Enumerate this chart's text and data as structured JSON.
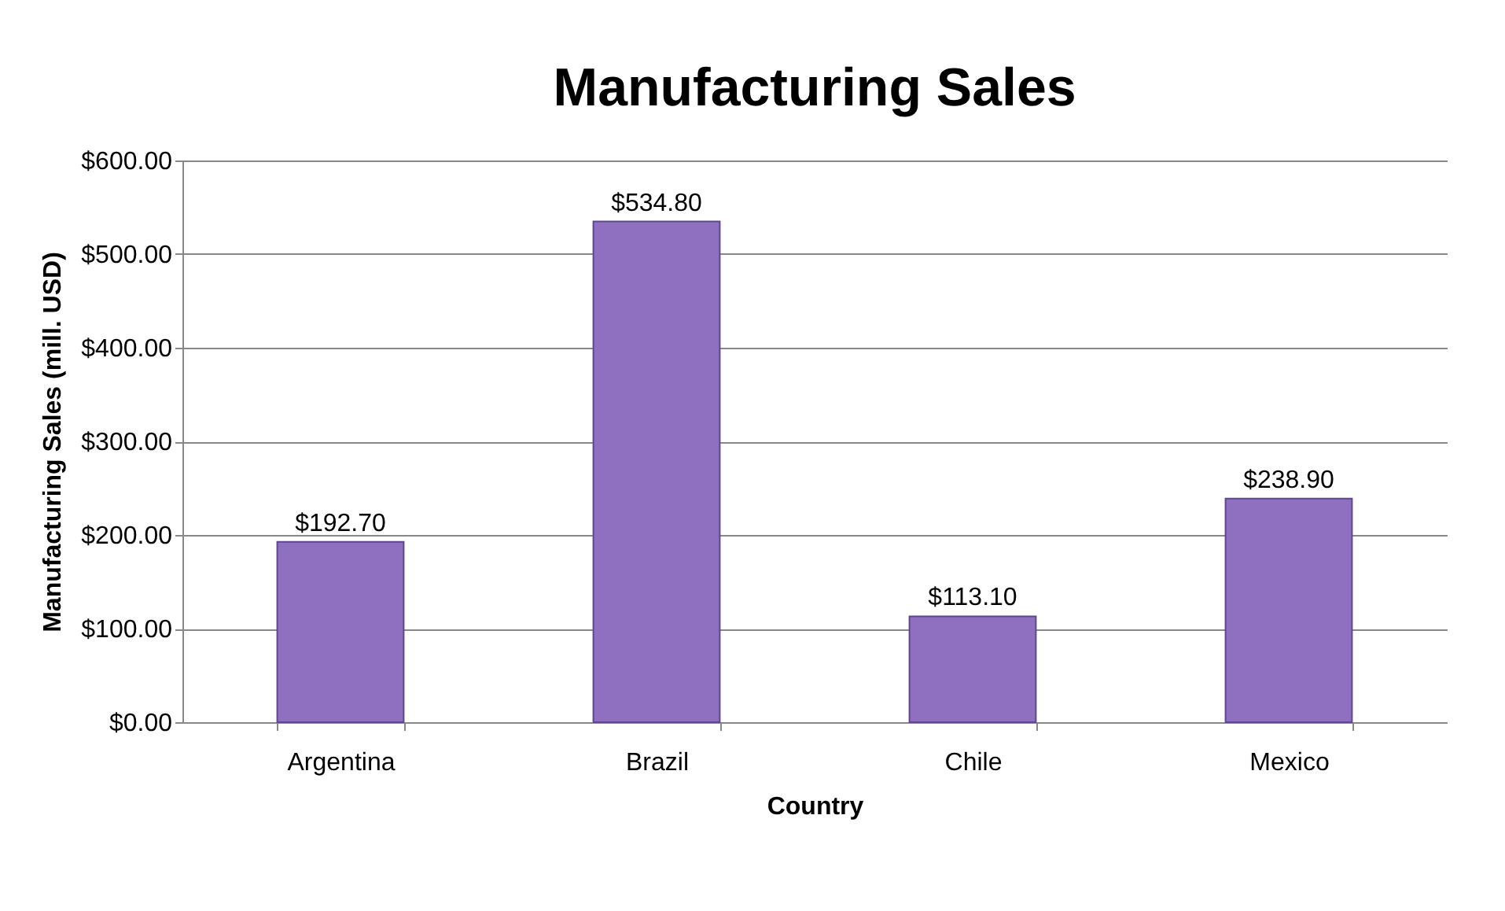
{
  "chart_data": {
    "type": "bar",
    "title": "Manufacturing Sales",
    "xlabel": "Country",
    "ylabel": "Manufacturing Sales (mill. USD)",
    "categories": [
      "Argentina",
      "Brazil",
      "Chile",
      "Mexico"
    ],
    "values": [
      192.7,
      534.8,
      113.1,
      238.9
    ],
    "value_labels": [
      "$192.70",
      "$534.80",
      "$113.10",
      "$238.90"
    ],
    "color": "#8e6fc0",
    "ylim": [
      0,
      600
    ],
    "yticks": [
      {
        "value": 0,
        "label": "$0.00"
      },
      {
        "value": 100,
        "label": "$100.00"
      },
      {
        "value": 200,
        "label": "$200.00"
      },
      {
        "value": 300,
        "label": "$300.00"
      },
      {
        "value": 400,
        "label": "$400.00"
      },
      {
        "value": 500,
        "label": "$500.00"
      },
      {
        "value": 600,
        "label": "$600.00"
      }
    ],
    "grid": "y"
  }
}
